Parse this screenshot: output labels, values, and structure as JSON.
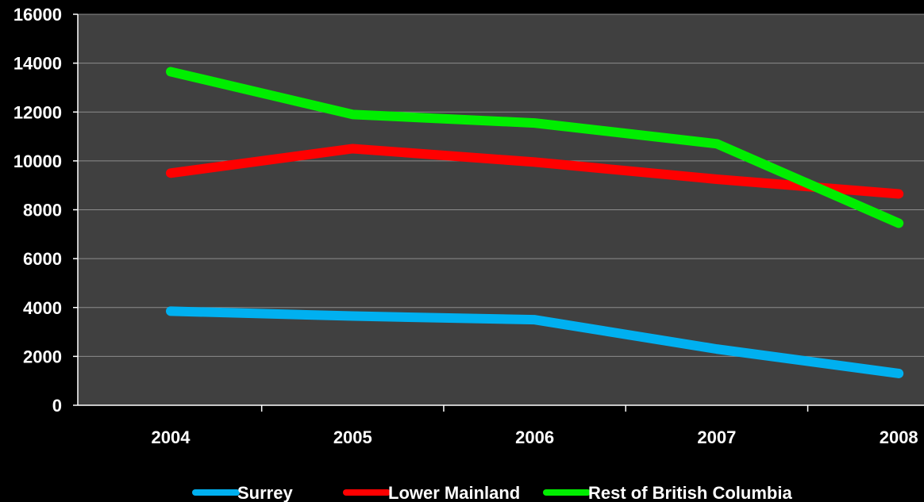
{
  "chart_data": {
    "type": "line",
    "title": "",
    "xlabel": "",
    "ylabel": "",
    "categories": [
      "2004",
      "2005",
      "2006",
      "2007",
      "2008"
    ],
    "ylim": [
      0,
      16000
    ],
    "yticks": [
      0,
      2000,
      4000,
      6000,
      8000,
      10000,
      12000,
      14000,
      16000
    ],
    "ytick_labels": [
      "0",
      "2000",
      "4000",
      "6000",
      "8000",
      "10000",
      "12000",
      "14000",
      "16000"
    ],
    "grid": true,
    "legend_position": "bottom",
    "plot_background": "#404040",
    "page_background": "#000000",
    "gridline_color": "#8c8c8c",
    "series": [
      {
        "name": "Surrey",
        "color": "#00b0f0",
        "values": [
          3850,
          3650,
          3500,
          2300,
          1300
        ]
      },
      {
        "name": "Lower Mainland",
        "color": "#ff0000",
        "values": [
          9500,
          10500,
          9950,
          9250,
          8650
        ]
      },
      {
        "name": "Rest of British Columbia",
        "color": "#00ee00",
        "values": [
          13650,
          11900,
          11550,
          10700,
          7450
        ]
      }
    ]
  }
}
